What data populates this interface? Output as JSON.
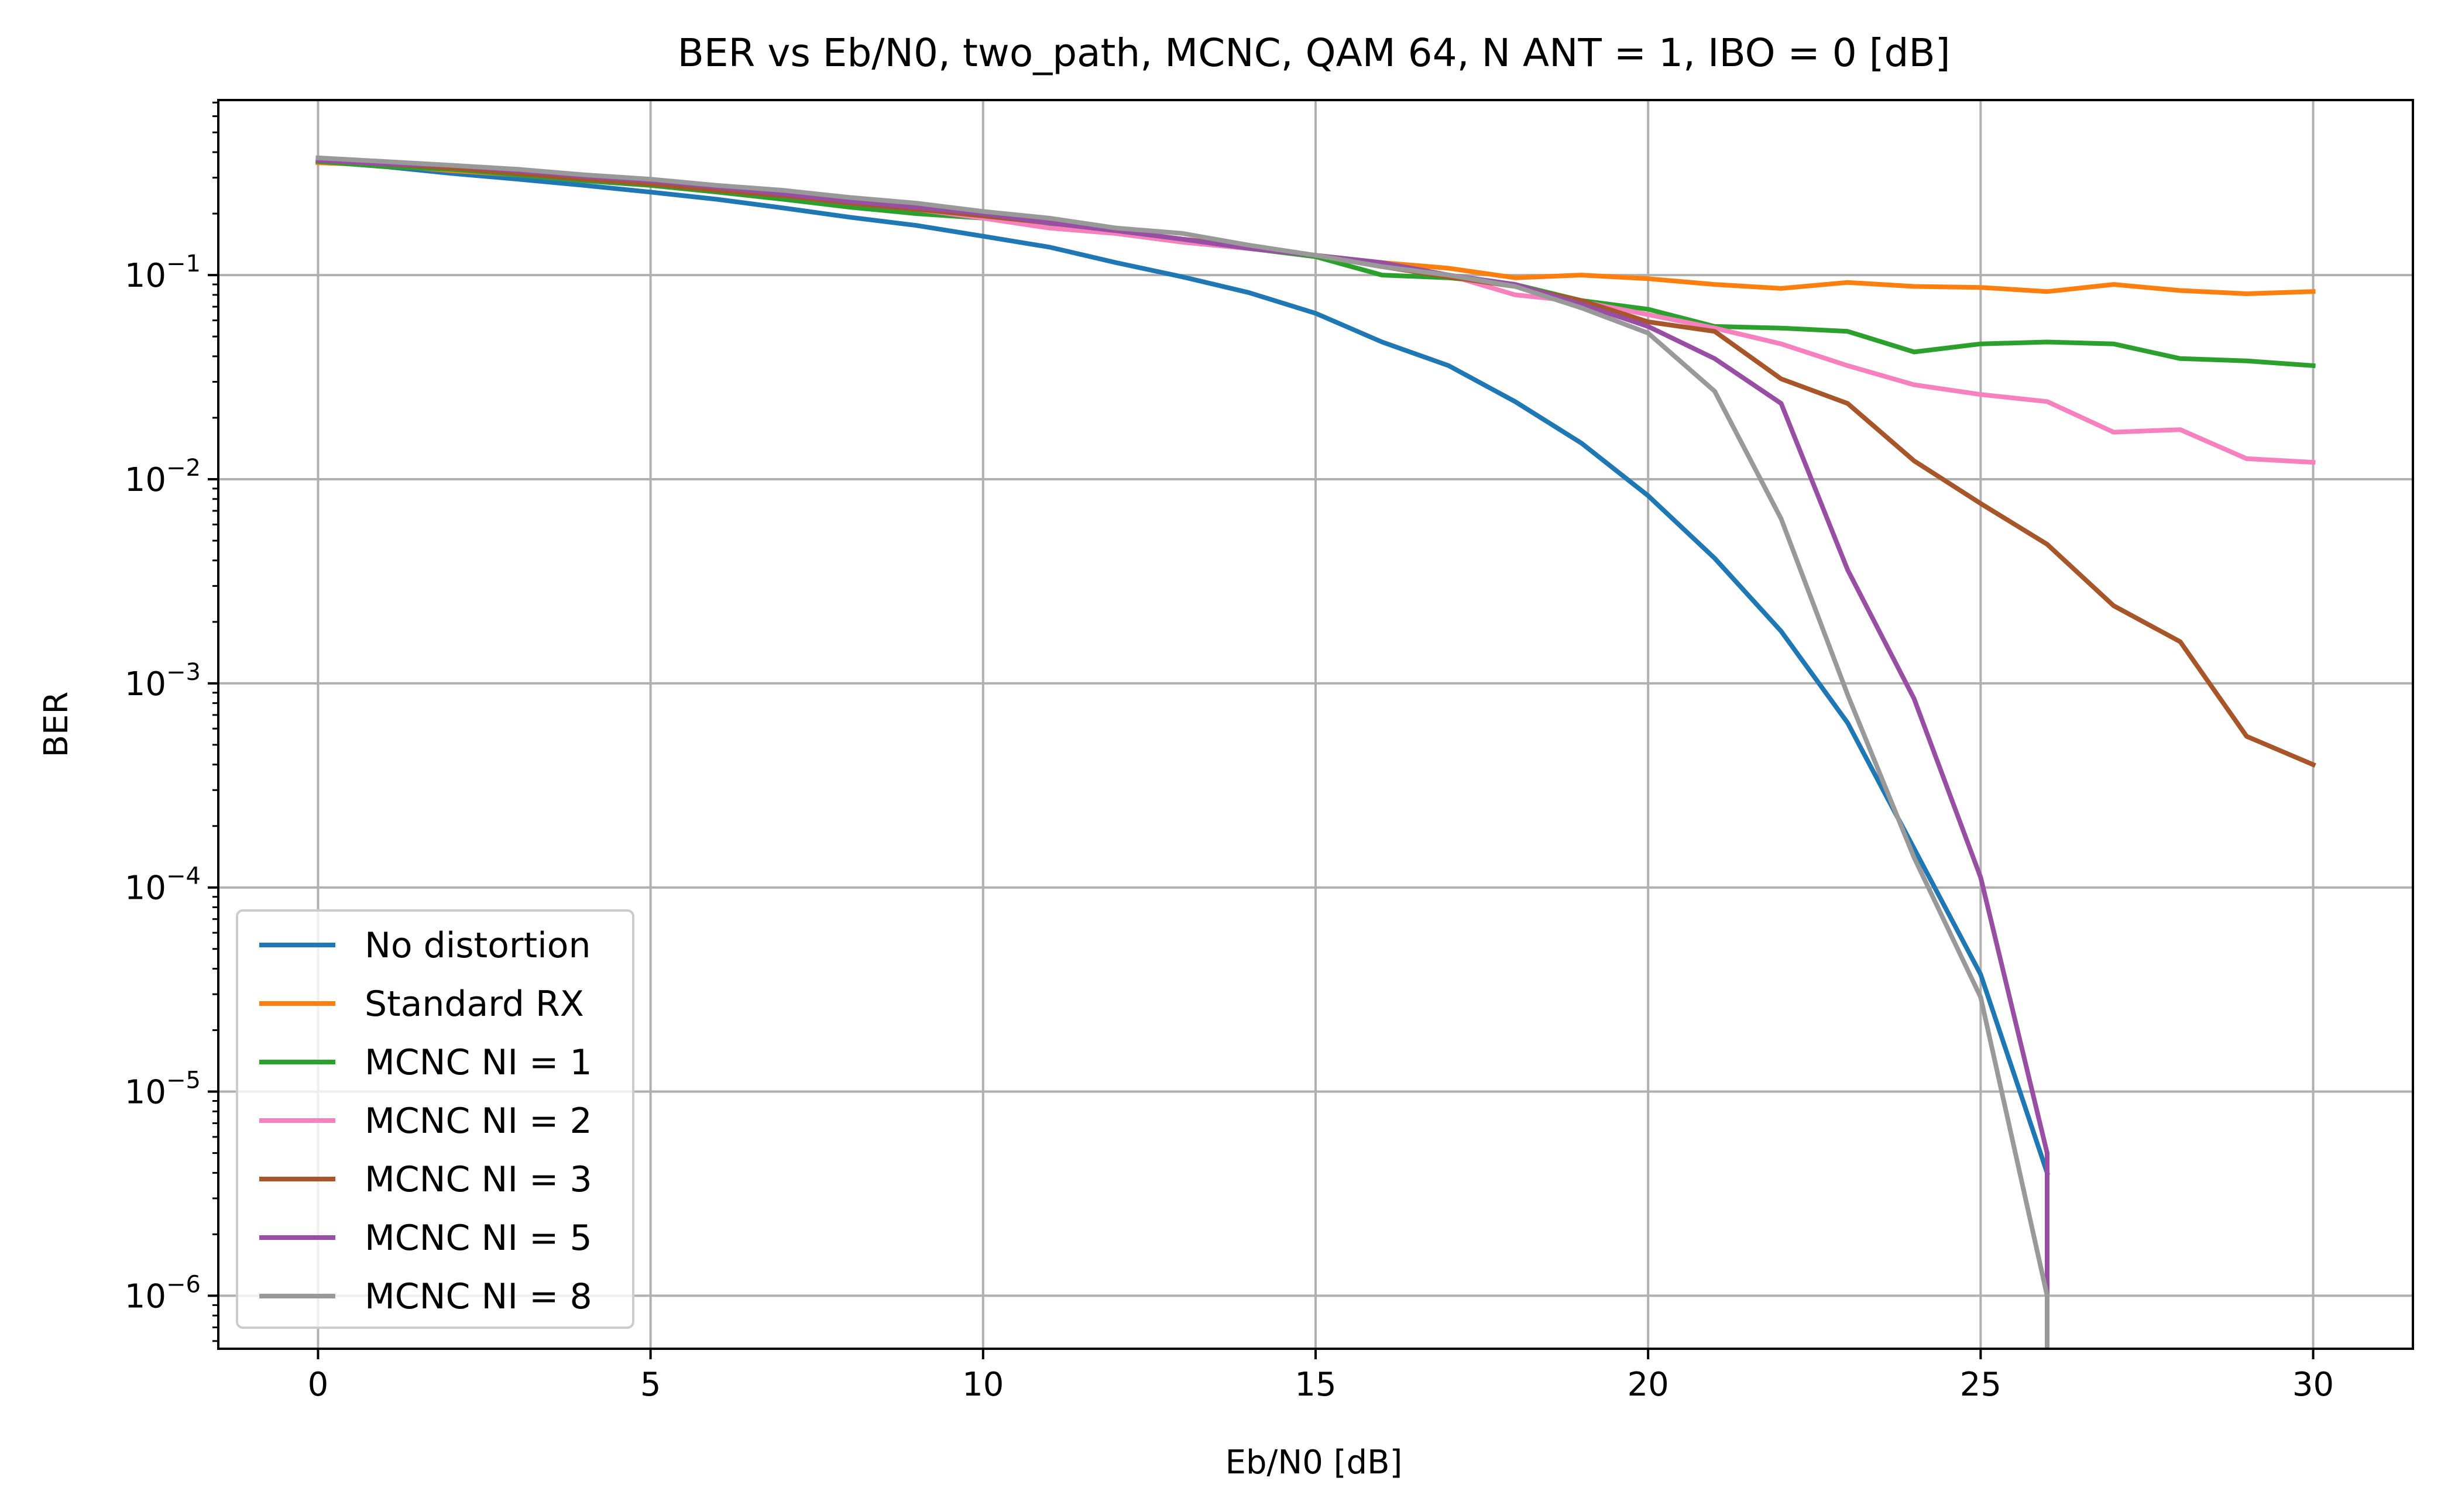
{
  "chart_data": {
    "type": "line",
    "title": "BER vs Eb/N0, two_path, MCNC, QAM 64, N ANT = 1, IBO = 0 [dB]",
    "xlabel": "Eb/N0 [dB]",
    "ylabel": "BER",
    "xscale": "linear",
    "yscale": "log",
    "xlim": [
      -1.5,
      31.5
    ],
    "ylim": [
      5.5e-07,
      0.72
    ],
    "grid": true,
    "legend_position": "lower-left",
    "x_ticks": [
      {
        "value": 0,
        "label": "0"
      },
      {
        "value": 5,
        "label": "5"
      },
      {
        "value": 10,
        "label": "10"
      },
      {
        "value": 15,
        "label": "15"
      },
      {
        "value": 20,
        "label": "20"
      },
      {
        "value": 25,
        "label": "25"
      },
      {
        "value": 30,
        "label": "30"
      }
    ],
    "y_ticks": [
      {
        "value": 0.1,
        "base": "10",
        "exp": "−1"
      },
      {
        "value": 0.01,
        "base": "10",
        "exp": "−2"
      },
      {
        "value": 0.001,
        "base": "10",
        "exp": "−3"
      },
      {
        "value": 0.0001,
        "base": "10",
        "exp": "−4"
      },
      {
        "value": 1e-05,
        "base": "10",
        "exp": "−5"
      },
      {
        "value": 1e-06,
        "base": "10",
        "exp": "−6"
      }
    ],
    "series": [
      {
        "name": "No distortion",
        "color": "#1f77b4",
        "x": [
          0,
          1,
          2,
          3,
          4,
          5,
          6,
          7,
          8,
          9,
          10,
          11,
          12,
          13,
          14,
          15,
          16,
          17,
          18,
          19,
          20,
          21,
          22,
          23,
          24,
          25,
          26
        ],
        "y": [
          0.36,
          0.34,
          0.315,
          0.295,
          0.275,
          0.255,
          0.235,
          0.213,
          0.192,
          0.175,
          0.155,
          0.137,
          0.115,
          0.098,
          0.082,
          0.065,
          0.047,
          0.036,
          0.024,
          0.015,
          0.0083,
          0.0041,
          0.0018,
          0.00064,
          0.000155,
          3.75e-05,
          4e-06
        ]
      },
      {
        "name": "Standard RX",
        "color": "#ff7f0e",
        "x": [
          0,
          1,
          2,
          3,
          4,
          5,
          6,
          7,
          8,
          9,
          10,
          11,
          12,
          13,
          14,
          15,
          16,
          17,
          18,
          19,
          20,
          21,
          22,
          23,
          24,
          25,
          26,
          27,
          28,
          29,
          30
        ],
        "y": [
          0.355,
          0.345,
          0.325,
          0.31,
          0.29,
          0.275,
          0.26,
          0.24,
          0.22,
          0.205,
          0.19,
          0.17,
          0.16,
          0.145,
          0.135,
          0.125,
          0.115,
          0.108,
          0.097,
          0.1,
          0.096,
          0.09,
          0.086,
          0.092,
          0.088,
          0.087,
          0.083,
          0.09,
          0.084,
          0.081,
          0.083
        ]
      },
      {
        "name": "MCNC NI = 1",
        "color": "#2ca02c",
        "x": [
          0,
          1,
          2,
          3,
          4,
          5,
          6,
          7,
          8,
          9,
          10,
          11,
          12,
          13,
          14,
          15,
          16,
          17,
          18,
          19,
          20,
          21,
          22,
          23,
          24,
          25,
          26,
          27,
          28,
          29,
          30
        ],
        "y": [
          0.36,
          0.34,
          0.33,
          0.31,
          0.29,
          0.275,
          0.255,
          0.235,
          0.215,
          0.2,
          0.19,
          0.175,
          0.16,
          0.145,
          0.135,
          0.123,
          0.1,
          0.097,
          0.09,
          0.075,
          0.068,
          0.056,
          0.055,
          0.053,
          0.042,
          0.046,
          0.047,
          0.046,
          0.039,
          0.038,
          0.036
        ]
      },
      {
        "name": "MCNC NI = 2",
        "color": "#f781bf",
        "x": [
          0,
          1,
          2,
          3,
          4,
          5,
          6,
          7,
          8,
          9,
          10,
          11,
          12,
          13,
          14,
          15,
          16,
          17,
          18,
          19,
          20,
          21,
          22,
          23,
          24,
          25,
          26,
          27,
          28,
          29,
          30
        ],
        "y": [
          0.37,
          0.35,
          0.34,
          0.32,
          0.3,
          0.285,
          0.265,
          0.245,
          0.225,
          0.21,
          0.19,
          0.17,
          0.16,
          0.145,
          0.135,
          0.125,
          0.11,
          0.1,
          0.08,
          0.074,
          0.064,
          0.055,
          0.046,
          0.036,
          0.029,
          0.026,
          0.024,
          0.017,
          0.0175,
          0.0126,
          0.0121
        ]
      },
      {
        "name": "MCNC NI = 3",
        "color": "#a65628",
        "x": [
          0,
          1,
          2,
          3,
          4,
          5,
          6,
          7,
          8,
          9,
          10,
          11,
          12,
          13,
          14,
          15,
          16,
          17,
          18,
          19,
          20,
          21,
          22,
          23,
          24,
          25,
          26,
          27,
          28,
          29,
          30
        ],
        "y": [
          0.365,
          0.35,
          0.335,
          0.315,
          0.295,
          0.28,
          0.26,
          0.245,
          0.225,
          0.21,
          0.195,
          0.18,
          0.165,
          0.15,
          0.138,
          0.125,
          0.11,
          0.098,
          0.088,
          0.075,
          0.059,
          0.053,
          0.031,
          0.0235,
          0.0123,
          0.0076,
          0.0048,
          0.0024,
          0.0016,
          0.00055,
          0.0004
        ]
      },
      {
        "name": "MCNC NI = 5",
        "color": "#984ea3",
        "x": [
          0,
          1,
          2,
          3,
          4,
          5,
          6,
          7,
          8,
          9,
          10,
          11,
          12,
          13,
          14,
          15,
          16,
          17,
          18,
          19,
          20,
          21,
          22,
          23,
          24,
          25,
          26,
          26
        ],
        "y": [
          0.365,
          0.35,
          0.345,
          0.325,
          0.305,
          0.29,
          0.27,
          0.25,
          0.23,
          0.215,
          0.2,
          0.18,
          0.165,
          0.15,
          0.135,
          0.125,
          0.115,
          0.1,
          0.09,
          0.072,
          0.056,
          0.039,
          0.0235,
          0.0036,
          0.00084,
          0.000112,
          5e-06,
          1e-06
        ]
      },
      {
        "name": "MCNC NI = 8",
        "color": "#999999",
        "x": [
          0,
          1,
          2,
          3,
          4,
          5,
          6,
          7,
          8,
          9,
          10,
          11,
          12,
          13,
          14,
          15,
          16,
          17,
          18,
          19,
          20,
          21,
          22,
          23,
          24,
          25,
          26,
          26
        ],
        "y": [
          0.375,
          0.36,
          0.345,
          0.33,
          0.31,
          0.295,
          0.275,
          0.26,
          0.24,
          0.225,
          0.205,
          0.19,
          0.17,
          0.16,
          0.14,
          0.125,
          0.11,
          0.1,
          0.088,
          0.069,
          0.052,
          0.027,
          0.0064,
          0.00088,
          0.00014,
          2.9e-05,
          1e-06,
          5e-07
        ]
      }
    ]
  }
}
